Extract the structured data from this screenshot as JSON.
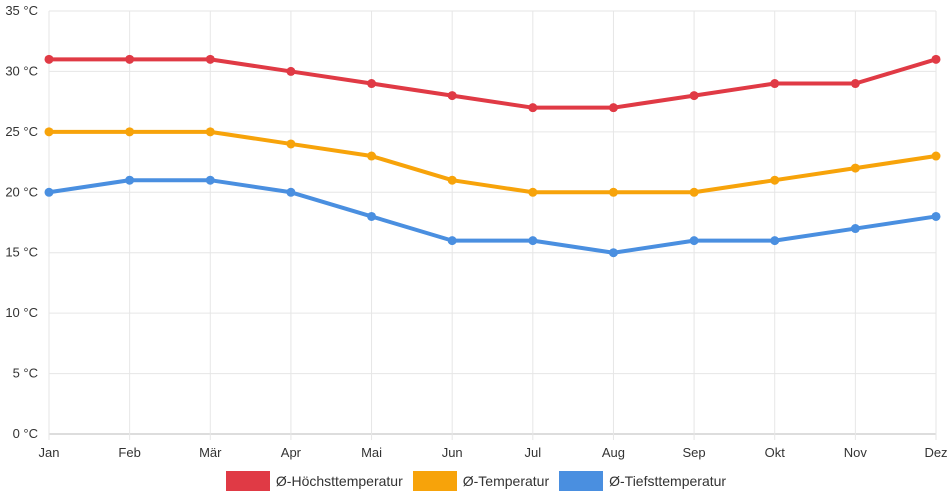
{
  "chart_data": {
    "type": "line",
    "categories": [
      "Jan",
      "Feb",
      "Mär",
      "Apr",
      "Mai",
      "Jun",
      "Jul",
      "Aug",
      "Sep",
      "Okt",
      "Nov",
      "Dez"
    ],
    "series": [
      {
        "name": "Ø-Höchsttemperatur",
        "color": "#e03a45",
        "values": [
          31,
          31,
          31,
          30,
          29,
          28,
          27,
          27,
          28,
          29,
          29,
          31
        ]
      },
      {
        "name": "Ø-Temperatur",
        "color": "#f7a30a",
        "values": [
          25,
          25,
          25,
          24,
          23,
          21,
          20,
          20,
          20,
          21,
          22,
          23
        ]
      },
      {
        "name": "Ø-Tiefsttemperatur",
        "color": "#4a8fe0",
        "values": [
          20,
          21,
          21,
          20,
          18,
          16,
          16,
          15,
          16,
          16,
          17,
          18
        ]
      }
    ],
    "y_ticks": [
      "0 °C",
      "5 °C",
      "10 °C",
      "15 °C",
      "20 °C",
      "25 °C",
      "30 °C",
      "35 °C"
    ],
    "ylim": [
      0,
      35
    ],
    "y_step": 5,
    "grid": true,
    "legend_position": "bottom"
  }
}
